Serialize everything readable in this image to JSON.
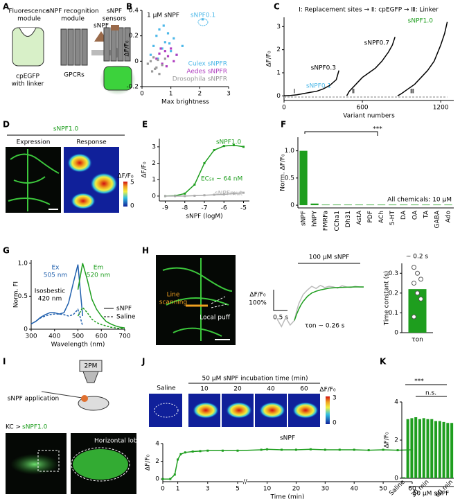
{
  "panel_labels": [
    "A",
    "B",
    "C",
    "D",
    "E",
    "F",
    "G",
    "H",
    "I",
    "J",
    "K"
  ],
  "panel_a": {
    "module1": [
      "Fluorescence",
      "module"
    ],
    "module2": [
      "sNPF recognition",
      "module"
    ],
    "sensors": [
      "sNPF",
      "sensors"
    ],
    "ligand": "sNPF",
    "insert": [
      "cpEGFP",
      "with linker"
    ],
    "receptor": "GPCRs"
  },
  "panel_d": {
    "title": "sNPF1.0",
    "left": "Expression",
    "right": "Response",
    "cbar_label": "ΔF/F₀",
    "cbar_max": 5,
    "cbar_min": 0
  },
  "panel_h_image": {
    "line": [
      "Line",
      "scanning"
    ],
    "puff": "Local puff"
  },
  "panel_i": {
    "application": "sNPF application",
    "microscope": "2PM",
    "driver": "KC >",
    "sensor": "sNPF1.0",
    "lobe": "Horizontal lobe"
  },
  "panel_j_images": {
    "saline": "Saline",
    "header": "50 μM sNPF incubation time (min)",
    "times": [
      10,
      20,
      40,
      60
    ],
    "cbar_label": "ΔF/F₀",
    "cbar_max": 3,
    "cbar_min": 0
  },
  "chart_data": [
    {
      "type": "scatter",
      "title": "1 μM sNPF",
      "xlabel": "Max brightness",
      "ylabel": "ΔF/F₀",
      "xlim": [
        0,
        3
      ],
      "ylim": [
        -0.2,
        0.4
      ],
      "xticks": [
        0,
        1,
        2,
        3
      ],
      "yticks": [
        -0.2,
        0,
        0.2,
        0.4
      ],
      "annotations": [
        "sNPF0.1"
      ],
      "series": [
        {
          "name": "Culex sNPFR",
          "color": "#4db8e8",
          "x": [
            0.3,
            0.4,
            0.5,
            0.6,
            0.7,
            0.8,
            0.9,
            1.0,
            1.1,
            1.2,
            1.4,
            0.55,
            0.75,
            0.95,
            2.1
          ],
          "values": [
            0.05,
            0.12,
            0.2,
            0.25,
            0.1,
            0.15,
            0.22,
            0.08,
            0.18,
            0.05,
            0.12,
            0.02,
            0.28,
            0.14,
            0.33
          ]
        },
        {
          "name": "Aedes sNPFR",
          "color": "#b040c0",
          "x": [
            0.5,
            0.6,
            0.7,
            0.8,
            0.9,
            1.0,
            1.1,
            1.2,
            0.65,
            0.85
          ],
          "values": [
            0.02,
            0.06,
            -0.02,
            0.08,
            0.04,
            0.1,
            0.0,
            0.05,
            0.1,
            -0.04
          ]
        },
        {
          "name": "Drosophila sNPFR",
          "color": "#999999",
          "x": [
            0.2,
            0.3,
            0.35,
            0.4,
            0.5,
            0.55,
            0.6,
            0.7,
            0.8,
            0.45
          ],
          "values": [
            -0.02,
            0.0,
            -0.08,
            0.03,
            -0.05,
            0.01,
            -0.1,
            -0.03,
            0.02,
            -0.06
          ]
        }
      ]
    },
    {
      "type": "line",
      "title": "Ⅰ: Replacement sites → Ⅱ: cpEGFP → Ⅲ: Linker",
      "xlabel": "Variant numbers",
      "ylabel": "ΔF/F₀",
      "xlim": [
        0,
        1300
      ],
      "ylim": [
        -0.2,
        3.4
      ],
      "xticks": [
        0,
        600,
        1200
      ],
      "yticks": [
        0,
        1,
        2,
        3
      ],
      "annotations": [
        "sNPF1.0",
        "sNPF0.7",
        "sNPF0.3",
        "sNPF0.1",
        "Ⅰ",
        "Ⅱ",
        "Ⅲ"
      ],
      "series": [
        {
          "color": "#000000",
          "x": [
            0,
            50,
            100,
            150,
            200,
            250,
            300,
            350,
            400,
            420
          ],
          "values": [
            0,
            0.02,
            0.05,
            0.1,
            0.15,
            0.2,
            0.3,
            0.45,
            0.7,
            1.1
          ]
        },
        {
          "color": "#000000",
          "x": [
            480,
            500,
            550,
            600,
            650,
            700,
            750,
            800,
            830,
            850
          ],
          "values": [
            0,
            0.2,
            0.5,
            0.8,
            1.0,
            1.2,
            1.5,
            1.9,
            2.2,
            2.55
          ]
        },
        {
          "color": "#000000",
          "x": [
            870,
            900,
            950,
            1000,
            1050,
            1100,
            1150,
            1200,
            1230,
            1250
          ],
          "values": [
            0,
            0.1,
            0.3,
            0.5,
            0.8,
            1.1,
            1.5,
            2.2,
            2.7,
            3.2
          ]
        },
        {
          "name": "sNPFmut",
          "color": "#aaaaaa",
          "dash": true,
          "x": [
            0,
            1250
          ],
          "values": [
            -0.05,
            -0.05
          ]
        }
      ]
    },
    {
      "type": "line",
      "xlabel": "sNPF (logM)",
      "ylabel": "ΔF/F₀",
      "markers": true,
      "xlim": [
        -9.3,
        -4.7
      ],
      "ylim": [
        -0.3,
        3.5
      ],
      "xticks": [
        -9,
        -8,
        -7,
        -6,
        -5
      ],
      "yticks": [
        0,
        1,
        2,
        3
      ],
      "annotations": [
        "EC₅₀ ~ 64 nM"
      ],
      "series": [
        {
          "name": "sNPF1.0",
          "color": "#1e9e1e",
          "x": [
            -9,
            -8.5,
            -8,
            -7.5,
            -7,
            -6.5,
            -6,
            -5.5,
            -5
          ],
          "values": [
            0,
            0.02,
            0.15,
            0.7,
            2.0,
            2.8,
            3.05,
            3.1,
            3.0
          ]
        },
        {
          "name": "sNPFmut",
          "color": "#aaaaaa",
          "x": [
            -9,
            -8.5,
            -8,
            -7.5,
            -7,
            -6.5,
            -6,
            -5.5,
            -5
          ],
          "values": [
            0,
            0,
            0,
            0.02,
            0.05,
            0.08,
            0.1,
            0.15,
            0.2
          ]
        }
      ]
    },
    {
      "type": "bar",
      "ylabel": "Norm. ΔF/F₀",
      "color": "#1e9e1e",
      "categories": [
        "sNPF",
        "hNPY",
        "FMRFa",
        "CCha1",
        "Dh31",
        "AstA",
        "PDF",
        "ACh",
        "5-HT",
        "DA",
        "OA",
        "TA",
        "GABA",
        "Ado"
      ],
      "values": [
        1.0,
        0.03,
        0.01,
        0.01,
        0.01,
        0.01,
        0.01,
        0.01,
        0.01,
        0.01,
        0.01,
        0.01,
        0.01,
        0.01
      ],
      "ylim": [
        -0.05,
        1.25
      ],
      "yticks": [
        0,
        0.5,
        {
          "value": 1,
          "label": "1.0"
        }
      ],
      "annotations": [
        "***",
        "All chemicals: 10 μM"
      ]
    },
    {
      "type": "line",
      "xlabel": "Wavelength (nm)",
      "ylabel": "Norm. FI",
      "xlim": [
        300,
        700
      ],
      "ylim": [
        0,
        1.05
      ],
      "xticks": [
        300,
        400,
        500,
        600,
        700
      ],
      "yticks": [
        0,
        0.5,
        {
          "value": 1,
          "label": "1.0"
        }
      ],
      "annotations": [
        "Ex",
        "505 nm",
        "Em",
        "520 nm",
        "Isosbestic",
        "420 nm"
      ],
      "legend": [
        {
          "name": "sNPF",
          "dash": false
        },
        {
          "name": "Saline",
          "dash": true
        }
      ],
      "series": [
        {
          "color": "#1f5fad",
          "x": [
            300,
            320,
            340,
            360,
            380,
            400,
            420,
            440,
            460,
            480,
            500,
            520
          ],
          "values": [
            0.08,
            0.12,
            0.18,
            0.22,
            0.25,
            0.25,
            0.23,
            0.25,
            0.4,
            0.7,
            0.98,
            0.2
          ]
        },
        {
          "color": "#1e9e1e",
          "x": [
            500,
            520,
            540,
            560,
            580,
            600,
            620,
            640,
            660,
            680,
            700
          ],
          "values": [
            0.6,
            1.0,
            0.75,
            0.45,
            0.3,
            0.2,
            0.12,
            0.08,
            0.05,
            0.03,
            0.02
          ]
        },
        {
          "color": "#1f5fad",
          "dash": true,
          "x": [
            300,
            320,
            340,
            360,
            380,
            400,
            420,
            440,
            460,
            480,
            500,
            520
          ],
          "values": [
            0.08,
            0.12,
            0.17,
            0.2,
            0.22,
            0.23,
            0.23,
            0.22,
            0.2,
            0.22,
            0.3,
            0.05
          ]
        },
        {
          "color": "#1e9e1e",
          "dash": true,
          "x": [
            500,
            520,
            540,
            560,
            580,
            600,
            620,
            640,
            660,
            680,
            700
          ],
          "values": [
            0.2,
            0.33,
            0.25,
            0.15,
            0.1,
            0.07,
            0.05,
            0.03,
            0.02,
            0.01,
            0.01
          ]
        }
      ]
    },
    {
      "type": "line",
      "axes": false,
      "title": "100 μM sNPF",
      "xlim": [
        0,
        2
      ],
      "ylim": [
        -0.4,
        1.6
      ],
      "annotations": [
        "ΔF/F₀",
        "100%",
        "0.5 s",
        "τon ~ 0.26 s"
      ],
      "series": [
        {
          "color": "#bbbbbb",
          "x": [
            0,
            0.1,
            0.2,
            0.3,
            0.4,
            0.45,
            0.5,
            0.55,
            0.6,
            0.7,
            0.8,
            0.9,
            1.0,
            1.1,
            1.2,
            1.3,
            1.4,
            1.5,
            1.6,
            1.7,
            1.8,
            1.9,
            2.0
          ],
          "values": [
            0.05,
            -0.2,
            0.1,
            -0.15,
            0.0,
            0.3,
            0.55,
            0.7,
            0.85,
            1.0,
            1.12,
            1.05,
            1.15,
            1.08,
            1.12,
            1.1,
            1.06,
            1.14,
            1.1,
            1.08,
            1.12,
            1.1,
            1.09
          ]
        },
        {
          "color": "#1e9e1e",
          "x": [
            0.4,
            0.45,
            0.5,
            0.55,
            0.6,
            0.7,
            0.8,
            0.9,
            1.0,
            1.2,
            1.4,
            1.6,
            1.8,
            2.0
          ],
          "values": [
            0,
            0.2,
            0.37,
            0.51,
            0.62,
            0.79,
            0.9,
            0.96,
            1.0,
            1.06,
            1.08,
            1.09,
            1.1,
            1.1
          ]
        }
      ]
    },
    {
      "type": "bar",
      "ylabel": "Time constant (s)",
      "color": "#1e9e1e",
      "categories": [
        "τon"
      ],
      "values": [
        0.22
      ],
      "points": [
        0.33,
        0.3,
        0.27,
        0.25,
        0.2,
        0.17,
        0.08
      ],
      "ylim": [
        0,
        0.35
      ],
      "yticks": [
        0,
        0.1,
        0.2,
        0.3
      ],
      "annotations": [
        "~ 0.2 s"
      ]
    },
    {
      "type": "line",
      "title": "sNPF",
      "xlabel": "Time (min)",
      "ylabel": "ΔF/F₀",
      "markers": true,
      "xlim": [
        0,
        60
      ],
      "xbreak": 5,
      "ylim": [
        -0.3,
        4
      ],
      "xticks": [
        0,
        1,
        3,
        5,
        10,
        20,
        30,
        40,
        50,
        60
      ],
      "yticks": [
        0,
        2,
        4
      ],
      "series": [
        {
          "color": "#1e9e1e",
          "x": [
            0,
            0.5,
            0.8,
            1,
            1.2,
            1.5,
            2,
            2.5,
            3,
            4,
            5,
            8,
            10,
            15,
            20,
            25,
            30,
            35,
            40,
            45,
            50,
            55,
            60
          ],
          "values": [
            0,
            0,
            0.5,
            2.2,
            2.8,
            3.0,
            3.1,
            3.15,
            3.2,
            3.2,
            3.2,
            3.3,
            3.35,
            3.3,
            3.3,
            3.35,
            3.3,
            3.3,
            3.3,
            3.25,
            3.3,
            3.25,
            3.3
          ]
        }
      ]
    },
    {
      "type": "bar",
      "ylabel": "ΔF/F₀",
      "color": "#1e9e1e",
      "categories": [
        "Saline",
        null,
        null,
        null,
        null,
        null,
        "30 min",
        null,
        null,
        null,
        null,
        null,
        "60 min"
      ],
      "values": [
        0.05,
        3.1,
        3.15,
        3.2,
        3.1,
        3.15,
        3.1,
        3.1,
        3.0,
        3.0,
        2.95,
        2.9,
        2.9
      ],
      "ylim": [
        0,
        4
      ],
      "yticks": [
        0,
        2,
        4
      ],
      "annotations": [
        "***",
        "n.s.",
        "50 μM sNPF"
      ]
    }
  ]
}
